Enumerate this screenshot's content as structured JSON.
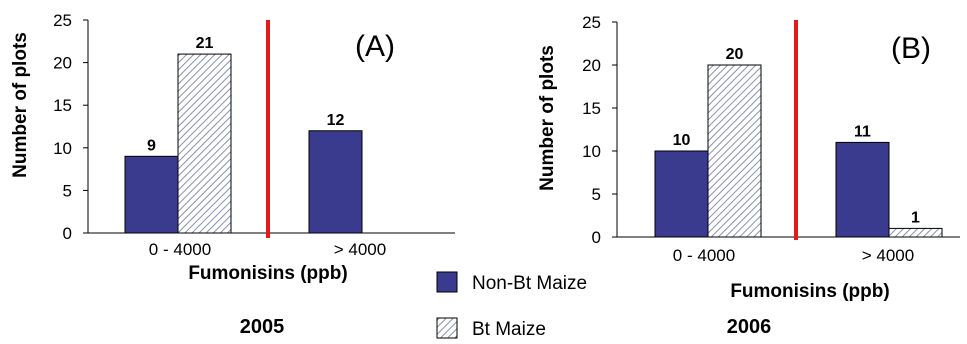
{
  "colors": {
    "non_bt": "#3a3b8e",
    "bt_hatch": "#8a8fb0",
    "divider": "#e31b1b"
  },
  "chart_data": [
    {
      "type": "bar",
      "panel_label": "(A)",
      "year_label": "2005",
      "categories": [
        "0 - 4000",
        "> 4000"
      ],
      "series": [
        {
          "name": "Non-Bt Maize",
          "values": [
            9,
            12
          ]
        },
        {
          "name": "Bt Maize",
          "values": [
            21,
            0
          ]
        }
      ],
      "data_labels": [
        [
          "9",
          "21"
        ],
        [
          "12",
          ""
        ]
      ],
      "xlabel": "Fumonisins (ppb)",
      "ylabel": "Number of plots",
      "ylim": [
        0,
        25
      ],
      "yticks": [
        "0",
        "5",
        "10",
        "15",
        "20",
        "25"
      ]
    },
    {
      "type": "bar",
      "panel_label": "(B)",
      "year_label": "2006",
      "categories": [
        "0 - 4000",
        "> 4000"
      ],
      "series": [
        {
          "name": "Non-Bt Maize",
          "values": [
            10,
            11
          ]
        },
        {
          "name": "Bt Maize",
          "values": [
            20,
            1
          ]
        }
      ],
      "data_labels": [
        [
          "10",
          "20"
        ],
        [
          "11",
          "1"
        ]
      ],
      "xlabel": "Fumonisins (ppb)",
      "ylabel": "Number of plots",
      "ylim": [
        0,
        25
      ],
      "yticks": [
        "0",
        "5",
        "10",
        "15",
        "20",
        "25"
      ]
    }
  ],
  "legend": {
    "items": [
      {
        "label": "Non-Bt Maize",
        "style": "solid"
      },
      {
        "label": "Bt Maize",
        "style": "hatched"
      }
    ]
  }
}
